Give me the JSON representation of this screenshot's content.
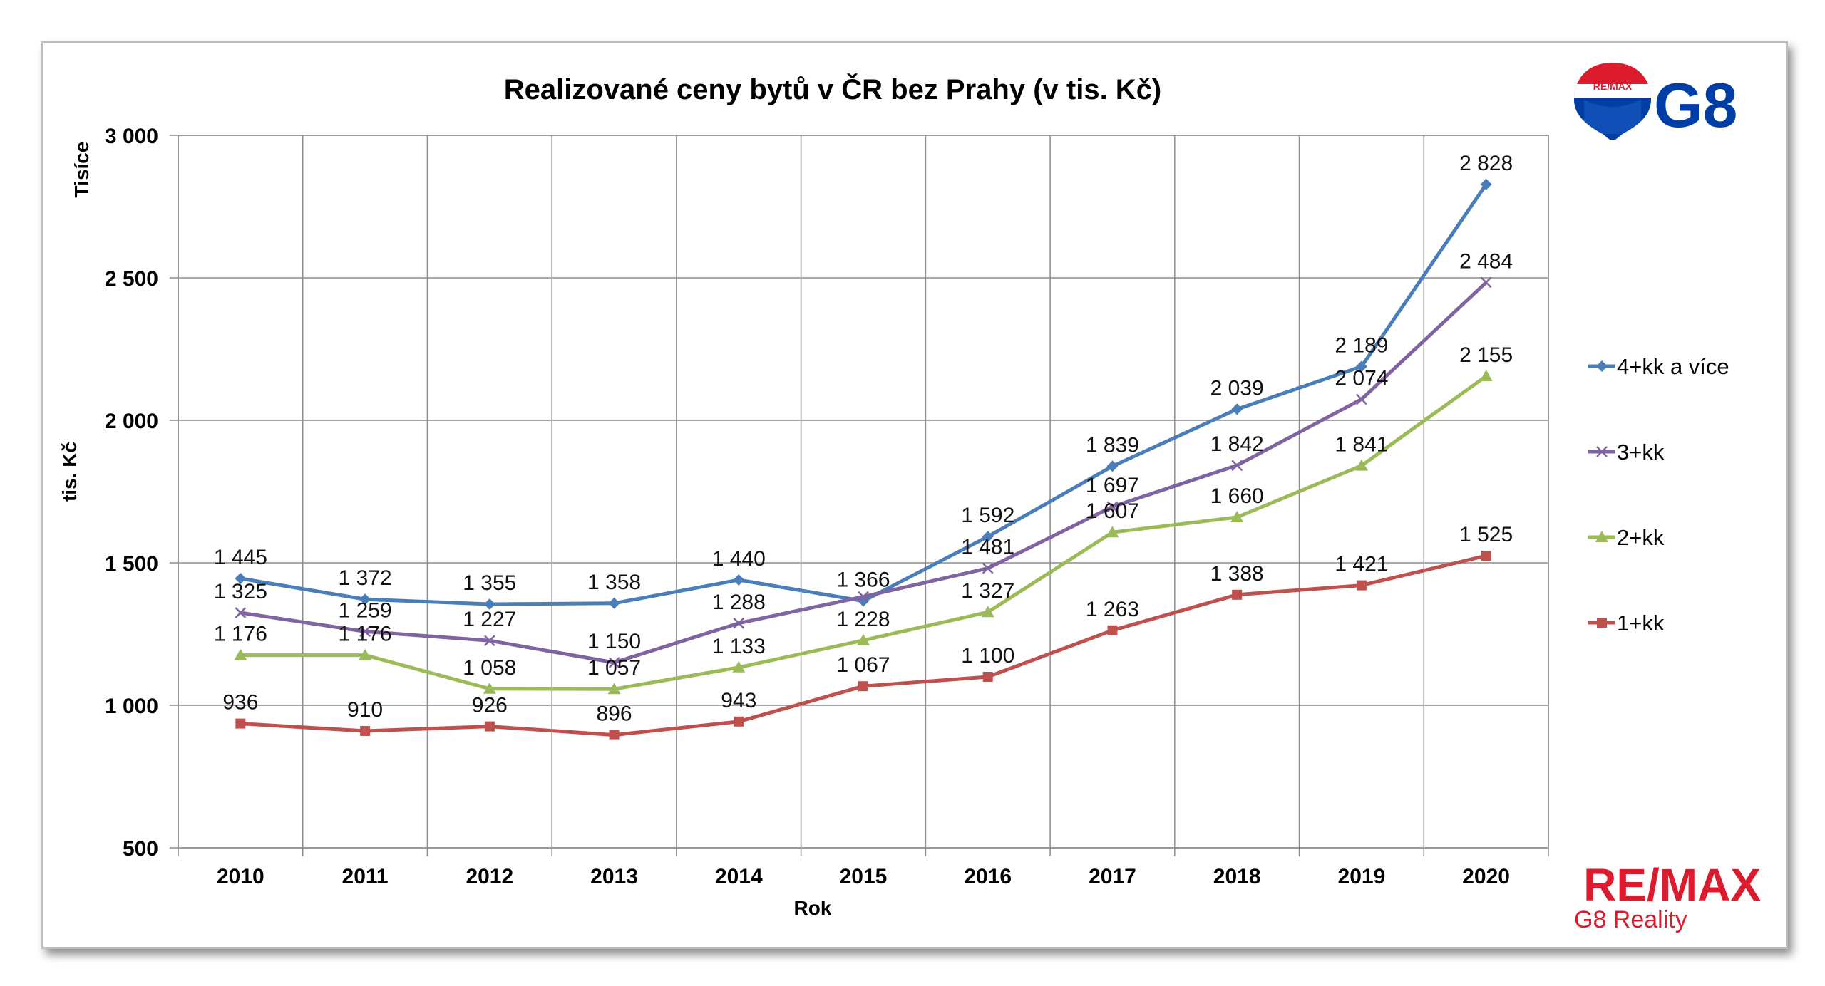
{
  "chart_data": {
    "type": "line",
    "title": "Realizované ceny bytů v ČR bez Prahy (v tis. Kč)",
    "xlabel": "Rok",
    "ylabel": "tis. Kč",
    "yunit_label": "Tisíce",
    "ylim": [
      500,
      3000
    ],
    "yticks": [
      500,
      1000,
      1500,
      2000,
      2500,
      3000
    ],
    "ytick_labels": [
      "500",
      "1 000",
      "1 500",
      "2 000",
      "2 500",
      "3 000"
    ],
    "categories": [
      "2010",
      "2011",
      "2012",
      "2013",
      "2014",
      "2015",
      "2016",
      "2017",
      "2018",
      "2019",
      "2020"
    ],
    "grid": true,
    "legend_position": "right",
    "series": [
      {
        "name": "4+kk a více",
        "color": "#4a7ebb",
        "marker": "diamond",
        "values": [
          1445,
          1372,
          1355,
          1358,
          1440,
          1366,
          1592,
          1839,
          2039,
          2189,
          2828
        ],
        "labels": [
          "1 445",
          "1 372",
          "1 355",
          "1 358",
          "1 440",
          "1 366",
          "1 592",
          "1 839",
          "2 039",
          "2 189",
          "2 828"
        ]
      },
      {
        "name": "3+kk",
        "color": "#8064a2",
        "marker": "x",
        "values": [
          1325,
          1259,
          1227,
          1150,
          1288,
          1381,
          1481,
          1697,
          1842,
          2074,
          2484
        ],
        "labels": [
          "1 325",
          "1 259",
          "1 227",
          "1 150",
          "1 288",
          "",
          "1 481",
          "1 697",
          "1 842",
          "2 074",
          "2 484"
        ]
      },
      {
        "name": "2+kk",
        "color": "#9bbb59",
        "marker": "triangle",
        "values": [
          1176,
          1176,
          1058,
          1057,
          1133,
          1228,
          1327,
          1607,
          1660,
          1841,
          2155
        ],
        "labels": [
          "1 176",
          "1 176",
          "1 058",
          "1 057",
          "1 133",
          "1 228",
          "1 327",
          "1 607",
          "1 660",
          "1 841",
          "2 155"
        ]
      },
      {
        "name": "1+kk",
        "color": "#c0504d",
        "marker": "square",
        "values": [
          936,
          910,
          926,
          896,
          943,
          1067,
          1100,
          1263,
          1388,
          1421,
          1525
        ],
        "labels": [
          "936",
          "910",
          "926",
          "896",
          "943",
          "1 067",
          "1 100",
          "1 263",
          "1 388",
          "1 421",
          "1 525"
        ]
      }
    ]
  },
  "branding": {
    "balloon_text": "RE/MAX",
    "logo_text": "G8",
    "remax_text": "RE/MAX",
    "company_text": "G8 Reality",
    "remax_red": "#dc1c2e",
    "remax_blue": "#003da5"
  }
}
